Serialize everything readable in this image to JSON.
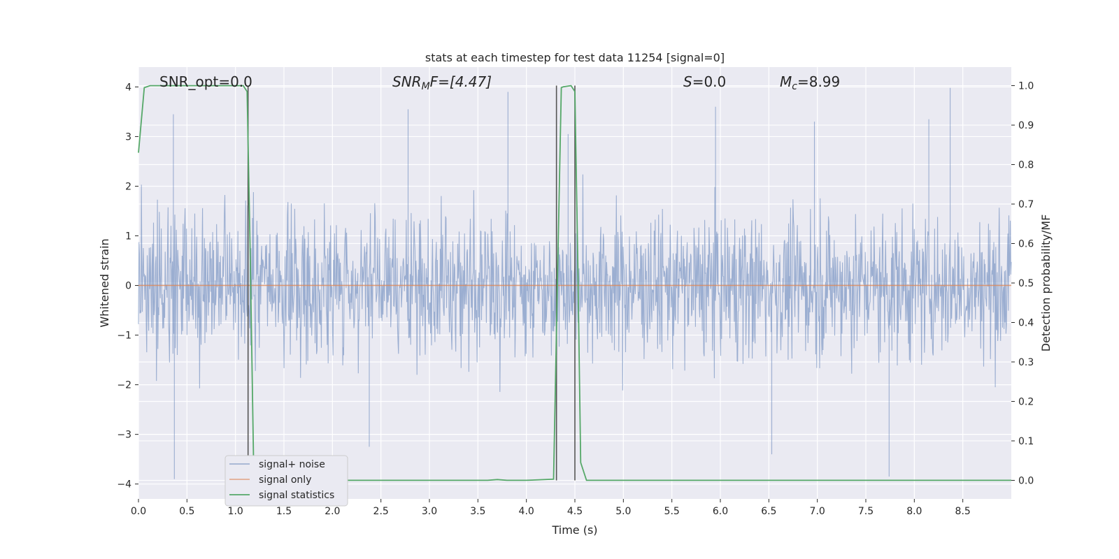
{
  "chart_data": {
    "type": "line",
    "title": "stats at each timestep for test data 11254 [signal=0]",
    "xlabel": "Time (s)",
    "ylabel": "Whitened strain",
    "ylabel_right": "Detection probability/MF",
    "xlim": [
      0.0,
      9.0
    ],
    "ylim": [
      -4.3,
      4.4
    ],
    "ylim_right": [
      -0.047,
      1.047
    ],
    "x_ticks": [
      "0.0",
      "0.5",
      "1.0",
      "1.5",
      "2.0",
      "2.5",
      "3.0",
      "3.5",
      "4.0",
      "4.5",
      "5.0",
      "5.5",
      "6.0",
      "6.5",
      "7.0",
      "7.5",
      "8.0",
      "8.5"
    ],
    "y_ticks": [
      "−4",
      "−3",
      "−2",
      "−1",
      "0",
      "1",
      "2",
      "3",
      "4"
    ],
    "y_ticks_right": [
      "0.0",
      "0.1",
      "0.2",
      "0.3",
      "0.4",
      "0.5",
      "0.6",
      "0.7",
      "0.8",
      "0.9",
      "1.0"
    ],
    "grid": true,
    "legend_position": "lower-left",
    "annotations": {
      "snr_opt": "SNR_opt=0.0",
      "snr_mf_main": "SNR",
      "snr_mf_sub": "M",
      "snr_mf_rest": "F=[4.47]",
      "s_var": "S",
      "s_rest": "=0.0",
      "mc_main": "M",
      "mc_sub": "c",
      "mc_rest": "=8.99"
    },
    "vertical_lines_x": [
      1.13,
      4.31,
      4.5
    ],
    "series": [
      {
        "name": "signal+ noise",
        "color": "#4c72b0",
        "envelope": {
          "note_samples_drawn_as_noise": true,
          "typical_band": [
            -1.6,
            1.6
          ],
          "notable_peaks": [
            [
              0.36,
              3.45
            ],
            [
              0.37,
              -3.9
            ],
            [
              2.78,
              3.55
            ],
            [
              3.81,
              3.9
            ],
            [
              4.43,
              3.05
            ],
            [
              5.95,
              3.6
            ],
            [
              6.53,
              -3.4
            ],
            [
              8.37,
              3.98
            ],
            [
              7.74,
              -3.85
            ],
            [
              2.38,
              -3.25
            ],
            [
              6.97,
              3.3
            ],
            [
              8.15,
              3.35
            ]
          ]
        }
      },
      {
        "name": "signal only",
        "color": "#dd8452",
        "x": [
          0.0,
          9.0
        ],
        "y": [
          0.0,
          0.0
        ]
      },
      {
        "name": "signal statistics",
        "color": "#55a868",
        "axis": "right",
        "x": [
          0.0,
          0.06,
          0.12,
          0.2,
          0.6,
          1.0,
          1.08,
          1.12,
          1.15,
          1.19,
          1.23,
          1.3,
          2.0,
          3.0,
          3.6,
          3.7,
          3.8,
          4.0,
          4.28,
          4.32,
          4.36,
          4.38,
          4.46,
          4.5,
          4.53,
          4.56,
          4.62,
          5.0,
          6.0,
          7.0,
          8.0,
          9.0
        ],
        "y": [
          0.83,
          0.995,
          1.0,
          1.0,
          1.0,
          1.0,
          1.0,
          0.985,
          0.6,
          0.0,
          0.0,
          0.0,
          0.0,
          0.0,
          0.0,
          0.002,
          0.0,
          0.0,
          0.003,
          0.5,
          0.995,
          0.997,
          1.0,
          0.985,
          0.55,
          0.045,
          0.0,
          0.0,
          0.0,
          0.0,
          0.0,
          0.0
        ]
      }
    ]
  }
}
